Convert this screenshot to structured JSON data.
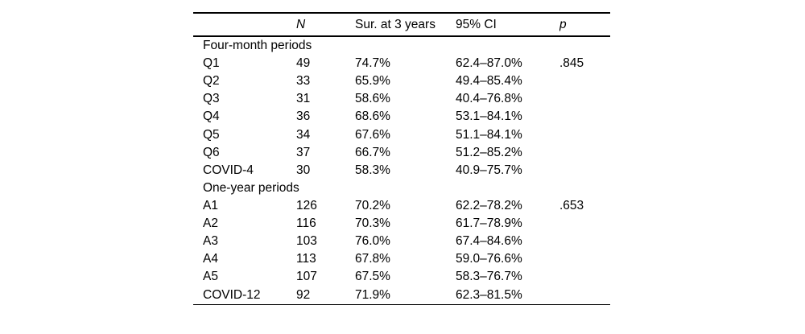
{
  "colors": {
    "background": "#ffffff",
    "text": "#000000",
    "rule": "#000000"
  },
  "table": {
    "columns": [
      {
        "label": "",
        "italic": false
      },
      {
        "label": "N",
        "italic": true
      },
      {
        "label": "Sur. at 3 years",
        "italic": false
      },
      {
        "label": "95% CI",
        "italic": false
      },
      {
        "label": "p",
        "italic": true
      }
    ],
    "sections": [
      {
        "title": "Four-month periods",
        "rows": [
          {
            "label": "Q1",
            "n": "49",
            "survival": "74.7%",
            "ci": "62.4–87.0%",
            "p": ".845"
          },
          {
            "label": "Q2",
            "n": "33",
            "survival": "65.9%",
            "ci": "49.4–85.4%",
            "p": ""
          },
          {
            "label": "Q3",
            "n": "31",
            "survival": "58.6%",
            "ci": "40.4–76.8%",
            "p": ""
          },
          {
            "label": "Q4",
            "n": "36",
            "survival": "68.6%",
            "ci": "53.1–84.1%",
            "p": ""
          },
          {
            "label": "Q5",
            "n": "34",
            "survival": "67.6%",
            "ci": "51.1–84.1%",
            "p": ""
          },
          {
            "label": "Q6",
            "n": "37",
            "survival": "66.7%",
            "ci": "51.2–85.2%",
            "p": ""
          },
          {
            "label": "COVID-4",
            "n": "30",
            "survival": "58.3%",
            "ci": "40.9–75.7%",
            "p": ""
          }
        ]
      },
      {
        "title": "One-year periods",
        "rows": [
          {
            "label": "A1",
            "n": "126",
            "survival": "70.2%",
            "ci": "62.2–78.2%",
            "p": ".653"
          },
          {
            "label": "A2",
            "n": "116",
            "survival": "70.3%",
            "ci": "61.7–78.9%",
            "p": ""
          },
          {
            "label": "A3",
            "n": "103",
            "survival": "76.0%",
            "ci": "67.4–84.6%",
            "p": ""
          },
          {
            "label": "A4",
            "n": "113",
            "survival": "67.8%",
            "ci": "59.0–76.6%",
            "p": ""
          },
          {
            "label": "A5",
            "n": "107",
            "survival": "67.5%",
            "ci": "58.3–76.7%",
            "p": ""
          },
          {
            "label": "COVID-12",
            "n": "92",
            "survival": "71.9%",
            "ci": "62.3–81.5%",
            "p": ""
          }
        ]
      }
    ]
  }
}
